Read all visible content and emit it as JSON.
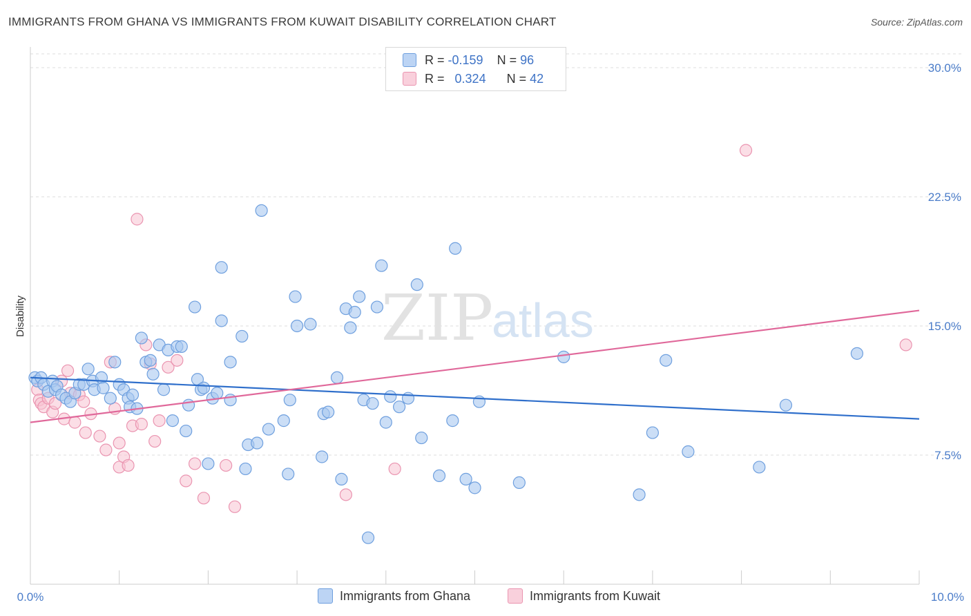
{
  "title": "IMMIGRANTS FROM GHANA VS IMMIGRANTS FROM KUWAIT DISABILITY CORRELATION CHART",
  "source": "Source: ZipAtlas.com",
  "watermark": {
    "zip": "ZIP",
    "atlas": "atlas"
  },
  "legend": {
    "r_label": "R =",
    "n_label": "N =",
    "series": [
      {
        "r": "-0.159",
        "n": "96"
      },
      {
        "r": "0.324",
        "n": "42"
      }
    ]
  },
  "colors": {
    "ghana_fill": "#a9c8f0",
    "ghana_stroke": "#6e9fde",
    "ghana_line": "#2f6fcb",
    "kuwait_fill": "#f7c3d2",
    "kuwait_stroke": "#ea94b0",
    "kuwait_line": "#e0689a",
    "grid": "#dddddd",
    "tick_text": "#4a7cc9"
  },
  "chart_data": {
    "type": "scatter",
    "title": "IMMIGRANTS FROM GHANA VS IMMIGRANTS FROM KUWAIT DISABILITY CORRELATION CHART",
    "xlabel": "",
    "ylabel": "Disability",
    "xlim": [
      0,
      10
    ],
    "ylim": [
      0,
      30
    ],
    "x_tick_labels": [
      "0.0%",
      "10.0%"
    ],
    "y_ticks": [
      7.5,
      15.0,
      22.5,
      30.0
    ],
    "y_tick_labels": [
      "7.5%",
      "15.0%",
      "22.5%",
      "30.0%"
    ],
    "grid": true,
    "legend_position": "top-center",
    "series": [
      {
        "name": "Immigrants from Ghana",
        "r": -0.159,
        "n": 96,
        "trend": {
          "x": [
            0,
            10
          ],
          "y": [
            12.0,
            9.6
          ]
        },
        "points": [
          [
            0.05,
            12.0
          ],
          [
            0.08,
            11.8
          ],
          [
            0.12,
            12.0
          ],
          [
            0.15,
            11.6
          ],
          [
            0.2,
            11.2
          ],
          [
            0.25,
            11.8
          ],
          [
            0.28,
            11.3
          ],
          [
            0.3,
            11.5
          ],
          [
            0.35,
            11.0
          ],
          [
            0.4,
            10.8
          ],
          [
            0.45,
            10.6
          ],
          [
            0.5,
            11.1
          ],
          [
            0.55,
            11.6
          ],
          [
            0.6,
            11.6
          ],
          [
            0.65,
            12.5
          ],
          [
            0.7,
            11.8
          ],
          [
            0.72,
            11.3
          ],
          [
            0.8,
            12.0
          ],
          [
            0.82,
            11.4
          ],
          [
            0.9,
            10.8
          ],
          [
            0.95,
            12.9
          ],
          [
            1.0,
            11.6
          ],
          [
            1.05,
            11.3
          ],
          [
            1.1,
            10.8
          ],
          [
            1.12,
            10.3
          ],
          [
            1.15,
            11.0
          ],
          [
            1.2,
            10.2
          ],
          [
            1.25,
            14.3
          ],
          [
            1.3,
            12.9
          ],
          [
            1.35,
            13.0
          ],
          [
            1.38,
            12.2
          ],
          [
            1.45,
            13.9
          ],
          [
            1.5,
            11.3
          ],
          [
            1.55,
            13.6
          ],
          [
            1.6,
            9.5
          ],
          [
            1.65,
            13.8
          ],
          [
            1.7,
            13.8
          ],
          [
            1.75,
            8.9
          ],
          [
            1.78,
            10.4
          ],
          [
            1.85,
            16.1
          ],
          [
            1.88,
            11.9
          ],
          [
            1.92,
            11.3
          ],
          [
            1.95,
            11.4
          ],
          [
            2.0,
            7.0
          ],
          [
            2.05,
            10.8
          ],
          [
            2.1,
            11.1
          ],
          [
            2.15,
            18.4
          ],
          [
            2.15,
            15.3
          ],
          [
            2.25,
            12.9
          ],
          [
            2.25,
            10.7
          ],
          [
            2.38,
            14.4
          ],
          [
            2.42,
            6.7
          ],
          [
            2.45,
            8.1
          ],
          [
            2.55,
            8.2
          ],
          [
            2.6,
            21.7
          ],
          [
            2.68,
            9.0
          ],
          [
            2.85,
            9.5
          ],
          [
            2.9,
            6.4
          ],
          [
            2.92,
            10.7
          ],
          [
            2.98,
            16.7
          ],
          [
            3.0,
            15.0
          ],
          [
            3.15,
            15.1
          ],
          [
            3.28,
            7.4
          ],
          [
            3.3,
            9.9
          ],
          [
            3.35,
            10.0
          ],
          [
            3.45,
            12.0
          ],
          [
            3.5,
            6.1
          ],
          [
            3.55,
            16.0
          ],
          [
            3.6,
            14.9
          ],
          [
            3.65,
            15.8
          ],
          [
            3.7,
            16.7
          ],
          [
            3.75,
            10.7
          ],
          [
            3.8,
            2.7
          ],
          [
            3.85,
            10.5
          ],
          [
            3.9,
            16.1
          ],
          [
            3.95,
            18.5
          ],
          [
            4.0,
            9.4
          ],
          [
            4.05,
            10.9
          ],
          [
            4.15,
            10.3
          ],
          [
            4.25,
            10.8
          ],
          [
            4.35,
            17.4
          ],
          [
            4.4,
            8.5
          ],
          [
            4.6,
            6.3
          ],
          [
            4.75,
            9.5
          ],
          [
            4.78,
            19.5
          ],
          [
            4.9,
            6.1
          ],
          [
            5.0,
            5.6
          ],
          [
            5.05,
            10.6
          ],
          [
            5.5,
            5.9
          ],
          [
            6.0,
            13.2
          ],
          [
            6.85,
            5.2
          ],
          [
            7.0,
            8.8
          ],
          [
            7.15,
            13.0
          ],
          [
            7.4,
            7.7
          ],
          [
            8.2,
            6.8
          ],
          [
            8.5,
            10.4
          ],
          [
            9.3,
            13.4
          ]
        ]
      },
      {
        "name": "Immigrants from Kuwait",
        "r": 0.324,
        "n": 42,
        "trend": {
          "x": [
            0,
            10
          ],
          "y": [
            9.4,
            15.9
          ]
        },
        "points": [
          [
            0.08,
            11.3
          ],
          [
            0.1,
            10.7
          ],
          [
            0.12,
            10.5
          ],
          [
            0.15,
            10.3
          ],
          [
            0.2,
            10.8
          ],
          [
            0.25,
            10.0
          ],
          [
            0.28,
            10.5
          ],
          [
            0.35,
            11.8
          ],
          [
            0.38,
            9.6
          ],
          [
            0.42,
            12.4
          ],
          [
            0.45,
            11.1
          ],
          [
            0.5,
            9.4
          ],
          [
            0.55,
            11.0
          ],
          [
            0.6,
            10.6
          ],
          [
            0.62,
            8.8
          ],
          [
            0.68,
            9.9
          ],
          [
            0.78,
            8.6
          ],
          [
            0.85,
            7.8
          ],
          [
            0.9,
            12.9
          ],
          [
            0.95,
            10.2
          ],
          [
            1.0,
            8.2
          ],
          [
            1.0,
            6.8
          ],
          [
            1.05,
            7.4
          ],
          [
            1.1,
            6.9
          ],
          [
            1.15,
            9.2
          ],
          [
            1.2,
            21.2
          ],
          [
            1.25,
            9.3
          ],
          [
            1.3,
            13.9
          ],
          [
            1.35,
            12.8
          ],
          [
            1.4,
            8.3
          ],
          [
            1.45,
            9.5
          ],
          [
            1.55,
            12.6
          ],
          [
            1.65,
            13.0
          ],
          [
            1.75,
            6.0
          ],
          [
            1.85,
            7.0
          ],
          [
            1.95,
            5.0
          ],
          [
            2.2,
            6.9
          ],
          [
            2.3,
            4.5
          ],
          [
            3.55,
            5.2
          ],
          [
            4.1,
            6.7
          ],
          [
            8.05,
            25.2
          ],
          [
            9.85,
            13.9
          ]
        ]
      }
    ]
  },
  "bottom_legend": [
    "Immigrants from Ghana",
    "Immigrants from Kuwait"
  ]
}
